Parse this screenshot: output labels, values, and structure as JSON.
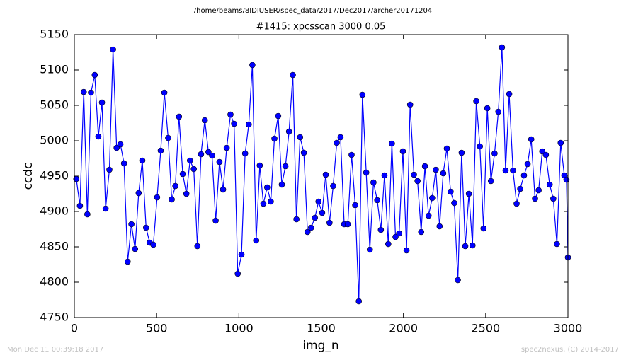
{
  "chart_data": {
    "type": "line",
    "suptitle": "/home/beams/8IDIUSER/spec_data/2017/Dec2017/archer20171204",
    "title": "#1415: xpcsscan 3000 0.05",
    "xlabel": "img_n",
    "ylabel": "ccdc",
    "annotations": [
      "Mon Dec 11 00:39:18 2017",
      "spec2nexus, (C) 2014-2017"
    ],
    "xlim": [
      0,
      3000
    ],
    "ylim": [
      4750,
      5150
    ],
    "xticks": [
      0,
      500,
      1000,
      1500,
      2000,
      2500,
      3000
    ],
    "yticks": [
      4750,
      4800,
      4850,
      4900,
      4950,
      5000,
      5050,
      5100,
      5150
    ],
    "grid": false,
    "x": [
      12,
      34,
      57,
      79,
      101,
      124,
      146,
      168,
      190,
      213,
      235,
      257,
      280,
      302,
      324,
      347,
      369,
      391,
      413,
      436,
      458,
      480,
      503,
      525,
      547,
      570,
      592,
      614,
      636,
      659,
      681,
      703,
      726,
      748,
      770,
      793,
      815,
      837,
      859,
      882,
      904,
      926,
      949,
      971,
      993,
      1016,
      1038,
      1060,
      1082,
      1105,
      1127,
      1149,
      1172,
      1194,
      1216,
      1239,
      1261,
      1283,
      1305,
      1328,
      1350,
      1372,
      1395,
      1417,
      1439,
      1462,
      1484,
      1506,
      1528,
      1551,
      1573,
      1595,
      1618,
      1640,
      1662,
      1685,
      1707,
      1729,
      1751,
      1774,
      1796,
      1818,
      1841,
      1863,
      1885,
      1908,
      1930,
      1952,
      1974,
      1997,
      2019,
      2041,
      2064,
      2086,
      2108,
      2131,
      2153,
      2175,
      2197,
      2220,
      2242,
      2264,
      2287,
      2309,
      2331,
      2354,
      2376,
      2398,
      2420,
      2443,
      2465,
      2487,
      2510,
      2532,
      2554,
      2577,
      2599,
      2621,
      2643,
      2666,
      2688,
      2710,
      2733,
      2755,
      2777,
      2800,
      2822,
      2844,
      2866,
      2889,
      2911,
      2933,
      2956,
      2978,
      2991,
      3000
    ],
    "series": [
      {
        "color": "#0000ff",
        "values": [
          4946,
          4908,
          5069,
          4896,
          5068,
          5093,
          5006,
          5054,
          4904,
          4959,
          5129,
          4990,
          4995,
          4968,
          4829,
          4882,
          4847,
          4926,
          4972,
          4877,
          4856,
          4853,
          4920,
          4986,
          5068,
          5004,
          4917,
          4936,
          5034,
          4953,
          4925,
          4972,
          4960,
          4851,
          4981,
          5029,
          4984,
          4979,
          4887,
          4970,
          4931,
          4990,
          5037,
          5024,
          4812,
          4839,
          4982,
          5023,
          5107,
          4859,
          4965,
          4911,
          4934,
          4914,
          5003,
          5035,
          4938,
          4964,
          5013,
          5093,
          4889,
          5005,
          4983,
          4871,
          4877,
          4891,
          4914,
          4898,
          4952,
          4884,
          4936,
          4997,
          5005,
          4882,
          4882,
          4980,
          4909,
          4773,
          5065,
          4955,
          4846,
          4941,
          4916,
          4874,
          4951,
          4854,
          4996,
          4864,
          4869,
          4985,
          4845,
          5051,
          4952,
          4943,
          4871,
          4964,
          4894,
          4919,
          4959,
          4879,
          4954,
          4989,
          4928,
          4912,
          4803,
          4983,
          4851,
          4925,
          4852,
          5056,
          4992,
          4876,
          5046,
          4943,
          4982,
          5041,
          5132,
          4958,
          5066,
          4958,
          4911,
          4932,
          4951,
          4967,
          5002,
          4918,
          4930,
          4985,
          4980,
          4938,
          4918,
          4854,
          4997,
          4951,
          4945,
          4835
        ]
      }
    ]
  }
}
